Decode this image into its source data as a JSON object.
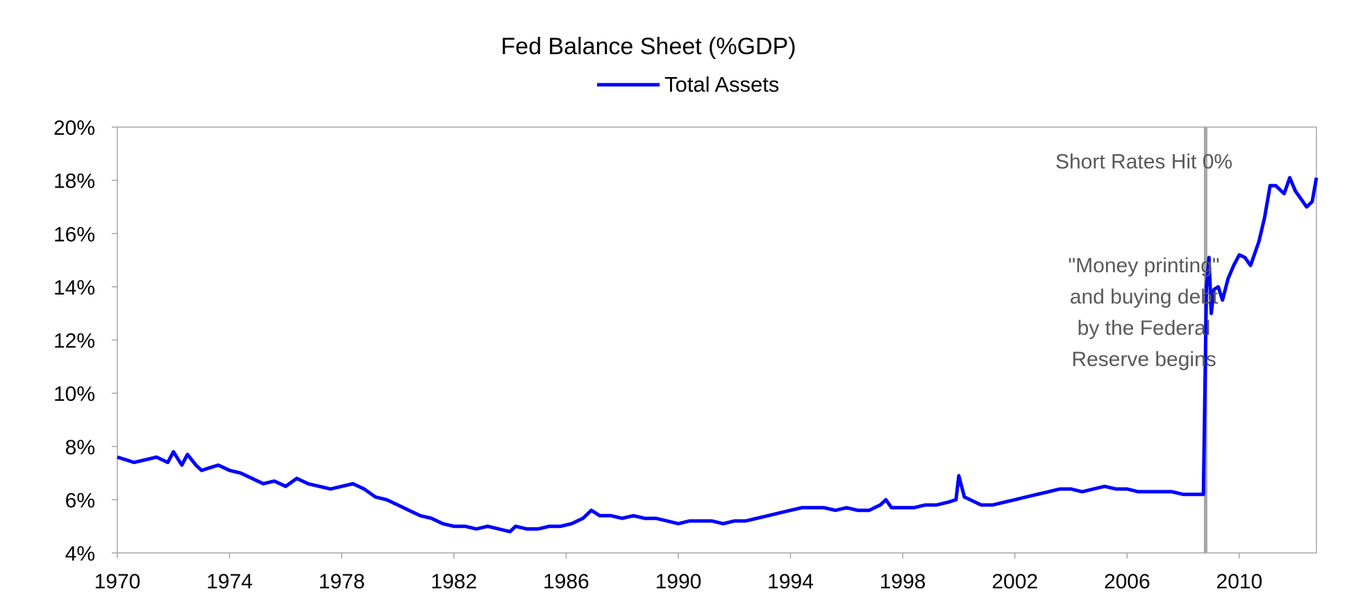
{
  "chart_data": {
    "type": "line",
    "title": "Fed Balance Sheet (%GDP)",
    "xlabel": "",
    "ylabel": "",
    "x_range": [
      1970,
      2012.75
    ],
    "ylim": [
      0.04,
      0.2
    ],
    "grid": false,
    "legend_position": "top-center",
    "x_ticks": [
      1970,
      1974,
      1978,
      1982,
      1986,
      1990,
      1994,
      1998,
      2002,
      2006,
      2010
    ],
    "x_tick_labels": [
      "1970",
      "1974",
      "1978",
      "1982",
      "1986",
      "1990",
      "1994",
      "1998",
      "2002",
      "2006",
      "2010"
    ],
    "y_ticks": [
      0.04,
      0.06,
      0.08,
      0.1,
      0.12,
      0.14,
      0.16,
      0.18,
      0.2
    ],
    "y_tick_labels": [
      "4%",
      "6%",
      "8%",
      "10%",
      "12%",
      "14%",
      "16%",
      "18%",
      "20%"
    ],
    "series": [
      {
        "name": "Total Assets",
        "color": "#0000ff",
        "x": [
          1970.0,
          1970.3,
          1970.6,
          1971.0,
          1971.4,
          1971.8,
          1972.0,
          1972.3,
          1972.5,
          1972.8,
          1973.0,
          1973.3,
          1973.6,
          1974.0,
          1974.4,
          1974.8,
          1975.2,
          1975.6,
          1976.0,
          1976.4,
          1976.8,
          1977.2,
          1977.6,
          1978.0,
          1978.4,
          1978.8,
          1979.2,
          1979.6,
          1980.0,
          1980.4,
          1980.8,
          1981.2,
          1981.6,
          1982.0,
          1982.4,
          1982.8,
          1983.2,
          1983.6,
          1984.0,
          1984.2,
          1984.6,
          1985.0,
          1985.4,
          1985.8,
          1986.2,
          1986.6,
          1986.9,
          1987.2,
          1987.6,
          1988.0,
          1988.4,
          1988.8,
          1989.2,
          1989.6,
          1990.0,
          1990.4,
          1990.8,
          1991.2,
          1991.6,
          1992.0,
          1992.4,
          1992.8,
          1993.2,
          1993.6,
          1994.0,
          1994.4,
          1994.8,
          1995.2,
          1995.6,
          1996.0,
          1996.4,
          1996.8,
          1997.2,
          1997.4,
          1997.6,
          1998.0,
          1998.4,
          1998.8,
          1999.2,
          1999.6,
          1999.9,
          2000.0,
          2000.2,
          2000.4,
          2000.8,
          2001.2,
          2001.6,
          2002.0,
          2002.4,
          2002.8,
          2003.2,
          2003.6,
          2004.0,
          2004.4,
          2004.8,
          2005.2,
          2005.6,
          2006.0,
          2006.4,
          2006.8,
          2007.2,
          2007.6,
          2008.0,
          2008.4,
          2008.6,
          2008.72,
          2008.83,
          2008.92,
          2009.0,
          2009.1,
          2009.25,
          2009.4,
          2009.6,
          2009.8,
          2010.0,
          2010.2,
          2010.4,
          2010.7,
          2010.9,
          2011.1,
          2011.3,
          2011.6,
          2011.8,
          2012.0,
          2012.2,
          2012.4,
          2012.6,
          2012.75
        ],
        "y": [
          0.076,
          0.075,
          0.074,
          0.075,
          0.076,
          0.074,
          0.078,
          0.073,
          0.077,
          0.073,
          0.071,
          0.072,
          0.073,
          0.071,
          0.07,
          0.068,
          0.066,
          0.067,
          0.065,
          0.068,
          0.066,
          0.065,
          0.064,
          0.065,
          0.066,
          0.064,
          0.061,
          0.06,
          0.058,
          0.056,
          0.054,
          0.053,
          0.051,
          0.05,
          0.05,
          0.049,
          0.05,
          0.049,
          0.048,
          0.05,
          0.049,
          0.049,
          0.05,
          0.05,
          0.051,
          0.053,
          0.056,
          0.054,
          0.054,
          0.053,
          0.054,
          0.053,
          0.053,
          0.052,
          0.051,
          0.052,
          0.052,
          0.052,
          0.051,
          0.052,
          0.052,
          0.053,
          0.054,
          0.055,
          0.056,
          0.057,
          0.057,
          0.057,
          0.056,
          0.057,
          0.056,
          0.056,
          0.058,
          0.06,
          0.057,
          0.057,
          0.057,
          0.058,
          0.058,
          0.059,
          0.06,
          0.069,
          0.061,
          0.06,
          0.058,
          0.058,
          0.059,
          0.06,
          0.061,
          0.062,
          0.063,
          0.064,
          0.064,
          0.063,
          0.064,
          0.065,
          0.064,
          0.064,
          0.063,
          0.063,
          0.063,
          0.063,
          0.062,
          0.062,
          0.062,
          0.062,
          0.14,
          0.151,
          0.13,
          0.139,
          0.14,
          0.135,
          0.143,
          0.148,
          0.152,
          0.151,
          0.148,
          0.157,
          0.166,
          0.178,
          0.178,
          0.175,
          0.181,
          0.176,
          0.173,
          0.17,
          0.172,
          0.181
        ]
      }
    ],
    "reference_line": {
      "x": 2008.8,
      "color": "#a6a6a6"
    },
    "annotations": [
      {
        "text": "Short Rates Hit 0%",
        "x": 2006.6,
        "y": 0.1845
      },
      {
        "lines": [
          "\"Money printing\"",
          "and buying debt",
          "by the Federal",
          "Reserve begins"
        ],
        "x": 2006.6,
        "y": 0.1455
      }
    ]
  }
}
